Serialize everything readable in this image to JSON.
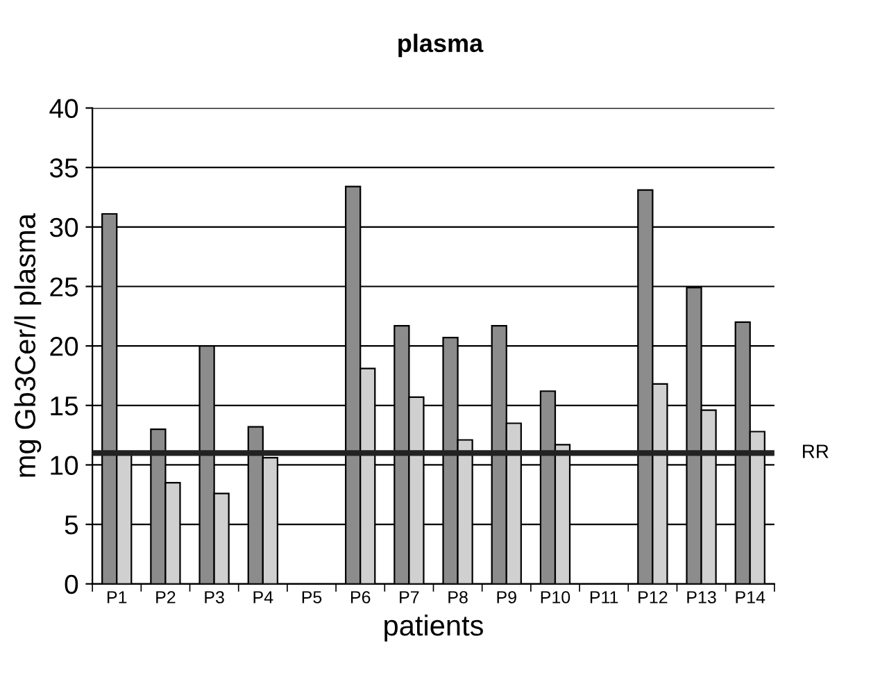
{
  "chart_data": {
    "type": "bar",
    "title": "plasma",
    "xlabel": "patients",
    "ylabel": "mg Gb3Cer/l plasma",
    "categories": [
      "P1",
      "P2",
      "P3",
      "P4",
      "P5",
      "P6",
      "P7",
      "P8",
      "P9",
      "P10",
      "P11",
      "P12",
      "P13",
      "P14"
    ],
    "series": [
      {
        "color": "#8c8c8c",
        "values": [
          31.1,
          13.0,
          20.0,
          13.2,
          null,
          33.4,
          21.7,
          20.7,
          21.7,
          16.2,
          null,
          33.1,
          24.9,
          22.0
        ]
      },
      {
        "color": "#d0d0d0",
        "values": [
          11.0,
          8.5,
          7.6,
          10.6,
          null,
          18.1,
          15.7,
          12.1,
          13.5,
          11.7,
          null,
          16.8,
          14.6,
          12.8
        ]
      }
    ],
    "ylim": [
      0,
      40
    ],
    "yticks": [
      0,
      5,
      10,
      15,
      20,
      25,
      30,
      35,
      40
    ],
    "grid": "y",
    "ref_lines": [
      {
        "axis": "y",
        "value": 11.0,
        "label": "RR",
        "color": "#222222"
      }
    ]
  }
}
